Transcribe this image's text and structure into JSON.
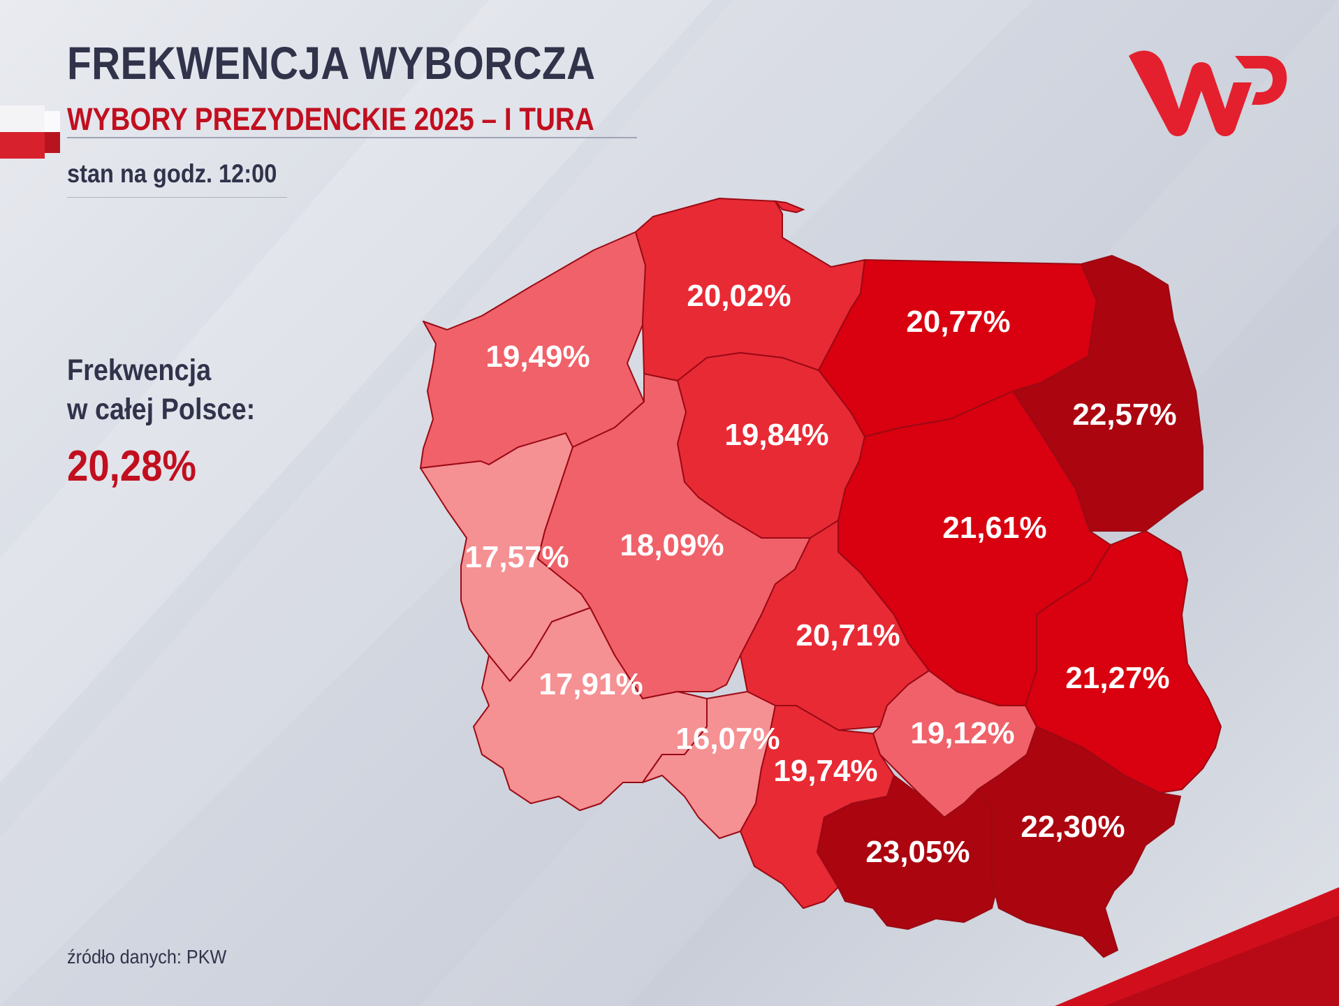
{
  "header": {
    "title": "FREKWENCJA WYBORCZA",
    "subtitle": "WYBORY PREZYDENCKIE 2025 – I TURA",
    "timestamp": "stan na godz. 12:00"
  },
  "national": {
    "label_line1": "Frekwencja",
    "label_line2": "w całej Polsce:",
    "value": "20,28%"
  },
  "source": "źródło danych: PKW",
  "brand": {
    "logo": "wp-logo",
    "color": "#e4202e"
  },
  "colors": {
    "text_dark": "#30334a",
    "accent_red": "#c10f1f",
    "scale": [
      "#f59093",
      "#f06169",
      "#e82a35",
      "#d9000f",
      "#ab0510"
    ]
  },
  "regions": [
    {
      "id": "zachodniopomorskie",
      "value": "19,49%",
      "turnout": 19.49
    },
    {
      "id": "pomorskie",
      "value": "20,02%",
      "turnout": 20.02
    },
    {
      "id": "warminsko-mazurskie",
      "value": "20,77%",
      "turnout": 20.77
    },
    {
      "id": "podlaskie",
      "value": "22,57%",
      "turnout": 22.57
    },
    {
      "id": "kujawsko-pomorskie",
      "value": "19,84%",
      "turnout": 19.84
    },
    {
      "id": "lubuskie",
      "value": "17,57%",
      "turnout": 17.57
    },
    {
      "id": "wielkopolskie",
      "value": "18,09%",
      "turnout": 18.09
    },
    {
      "id": "mazowieckie",
      "value": "21,61%",
      "turnout": 21.61
    },
    {
      "id": "lodzkie",
      "value": "20,71%",
      "turnout": 20.71
    },
    {
      "id": "dolnoslaskie",
      "value": "17,91%",
      "turnout": 17.91
    },
    {
      "id": "opolskie",
      "value": "16,07%",
      "turnout": 16.07
    },
    {
      "id": "slaskie",
      "value": "19,74%",
      "turnout": 19.74
    },
    {
      "id": "swietokrzyskie",
      "value": "19,12%",
      "turnout": 19.12
    },
    {
      "id": "lubelskie",
      "value": "21,27%",
      "turnout": 21.27
    },
    {
      "id": "malopolskie",
      "value": "23,05%",
      "turnout": 23.05
    },
    {
      "id": "podkarpackie",
      "value": "22,30%",
      "turnout": 22.3
    }
  ]
}
